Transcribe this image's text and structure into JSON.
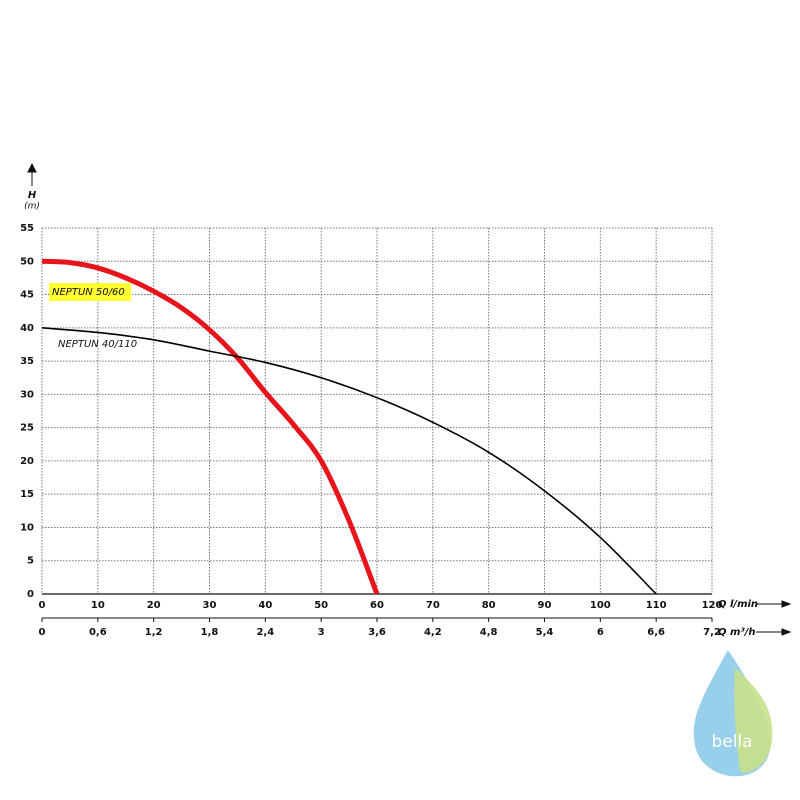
{
  "chart_data": {
    "type": "line",
    "y_label": "H",
    "y_unit": "(m)",
    "x_label": "Q l/min",
    "x2_label": "Q m³/h",
    "series": [
      {
        "name": "NEPTUN 50/60",
        "color": "#e8141b",
        "highlight": "#ffff33",
        "x": [
          0,
          5,
          10,
          15,
          20,
          25,
          30,
          35,
          40,
          45,
          50,
          55,
          60
        ],
        "values": [
          50,
          49.8,
          49,
          47.5,
          45.5,
          43,
          39.7,
          35.5,
          30.3,
          25.5,
          20,
          11,
          0
        ]
      },
      {
        "name": "NEPTUN 40/110",
        "color": "#000000",
        "x": [
          0,
          10,
          20,
          30,
          40,
          50,
          60,
          70,
          80,
          90,
          100,
          110
        ],
        "values": [
          40,
          39.3,
          38.2,
          36.5,
          34.8,
          32.5,
          29.5,
          25.8,
          21.3,
          15.5,
          8.5,
          0
        ]
      }
    ],
    "xlim": [
      0,
      120
    ],
    "xticks": [
      0,
      10,
      20,
      30,
      40,
      50,
      60,
      70,
      80,
      90,
      100,
      110,
      120
    ],
    "x2lim": [
      0,
      7.2
    ],
    "x2ticks": [
      0,
      {
        "value": 0.6,
        "label": "0,6"
      },
      {
        "value": 1.2,
        "label": "1,2"
      },
      {
        "value": 1.8,
        "label": "1,8"
      },
      {
        "value": 2.4,
        "label": "2,4"
      },
      3,
      {
        "value": 3.6,
        "label": "3,6"
      },
      {
        "value": 4.2,
        "label": "4,2"
      },
      {
        "value": 4.8,
        "label": "4,8"
      },
      {
        "value": 5.4,
        "label": "5,4"
      },
      6,
      {
        "value": 6.6,
        "label": "6,6"
      },
      {
        "value": 7.2,
        "label": "7,2"
      }
    ],
    "ylim": [
      0,
      55
    ],
    "yticks": [
      0,
      5,
      10,
      15,
      20,
      25,
      30,
      35,
      40,
      45,
      50,
      55
    ],
    "grid": true
  },
  "logo": {
    "text": "bella"
  }
}
